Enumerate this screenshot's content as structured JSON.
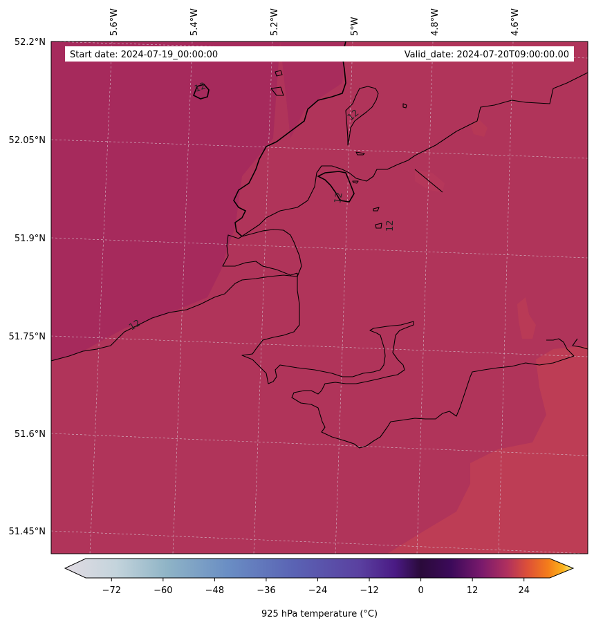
{
  "header": {
    "start_date": "Start date: 2024-07-19_00:00:00",
    "valid_date": "Valid_date: 2024-07-20T09:00:00.00"
  },
  "map": {
    "lon_ticks": [
      "5.6°W",
      "5.4°W",
      "5.2°W",
      "5°W",
      "4.8°W",
      "4.6°W"
    ],
    "lat_ticks": [
      "52.2°N",
      "52.05°N",
      "51.9°N",
      "51.75°N",
      "51.6°N",
      "51.45°N"
    ],
    "contour_value": "12",
    "colors": {
      "sea_west": "#a62a5c",
      "land": "#b0345a",
      "warm_patch": "#bd3d55",
      "coastline": "#000000"
    }
  },
  "colorbar": {
    "label": "925 hPa temperature ($^\\circ$C)",
    "label_display": "925 hPa temperature (°C)",
    "ticks": [
      "-72",
      "-60",
      "-48",
      "-36",
      "-24",
      "-12",
      "0",
      "12",
      "24"
    ],
    "range": [
      -84,
      36
    ],
    "stops": [
      "#e2dbe3",
      "#c4d4dc",
      "#8fb4c6",
      "#6a8ec4",
      "#5a63b4",
      "#5a40a0",
      "#4a1a84",
      "#2a0a3a",
      "#3c0a5a",
      "#7a1a6c",
      "#b0305e",
      "#dd5038",
      "#f47c1a",
      "#fbb21c",
      "#f6f08c"
    ]
  }
}
